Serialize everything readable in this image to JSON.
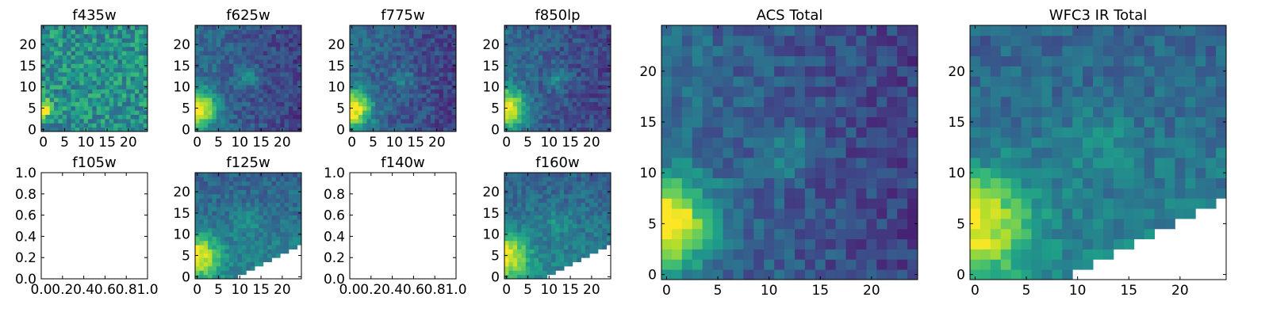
{
  "figure": {
    "colormap": "viridis",
    "background": "#ffffff"
  },
  "chart_data": [
    {
      "id": "p-f435w",
      "type": "heatmap",
      "title": "f435w",
      "xlim": [
        -0.5,
        24.5
      ],
      "ylim": [
        -0.5,
        24.5
      ],
      "xticks": [
        0,
        5,
        10,
        15,
        20
      ],
      "yticks": [
        0,
        5,
        10,
        15,
        20
      ],
      "grid": false,
      "pattern": "noisy",
      "bright_spot": [
        0,
        5
      ]
    },
    {
      "id": "p-f625w",
      "type": "heatmap",
      "title": "f625w",
      "xlim": [
        -0.5,
        24.5
      ],
      "ylim": [
        -0.5,
        24.5
      ],
      "xticks": [
        0,
        5,
        10,
        15,
        20
      ],
      "yticks": [
        0,
        5,
        10,
        15,
        20
      ],
      "grid": false,
      "pattern": "acs",
      "bright_spot": [
        0,
        5
      ]
    },
    {
      "id": "p-f775w",
      "type": "heatmap",
      "title": "f775w",
      "xlim": [
        -0.5,
        24.5
      ],
      "ylim": [
        -0.5,
        24.5
      ],
      "xticks": [
        0,
        5,
        10,
        15,
        20
      ],
      "yticks": [
        0,
        5,
        10,
        15,
        20
      ],
      "grid": false,
      "pattern": "acs",
      "bright_spot": [
        0,
        5
      ]
    },
    {
      "id": "p-f850lp",
      "type": "heatmap",
      "title": "f850lp",
      "xlim": [
        -0.5,
        24.5
      ],
      "ylim": [
        -0.5,
        24.5
      ],
      "xticks": [
        0,
        5,
        10,
        15,
        20
      ],
      "yticks": [
        0,
        5,
        10,
        15,
        20
      ],
      "grid": false,
      "pattern": "acs",
      "bright_spot": [
        0,
        5
      ]
    },
    {
      "id": "p-f105w",
      "type": "empty",
      "title": "f105w",
      "xlim": [
        0,
        1
      ],
      "ylim": [
        0,
        1
      ],
      "xticks": [
        0.0,
        0.2,
        0.4,
        0.6,
        0.8,
        1.0
      ],
      "yticks": [
        0.0,
        0.2,
        0.4,
        0.6,
        0.8,
        1.0
      ],
      "xticklabels": [
        "0.0",
        "0.2",
        "0.4",
        "0.6",
        "0.8",
        "1.0"
      ],
      "yticklabels": [
        "0.0",
        "0.2",
        "0.4",
        "0.6",
        "0.8",
        "1.0"
      ],
      "grid": false
    },
    {
      "id": "p-f125w",
      "type": "heatmap",
      "title": "f125w",
      "xlim": [
        -0.5,
        24.5
      ],
      "ylim": [
        -0.5,
        24.5
      ],
      "xticks": [
        0,
        5,
        10,
        15,
        20
      ],
      "yticks": [
        0,
        5,
        10,
        15,
        20
      ],
      "grid": false,
      "pattern": "ir",
      "bright_spot": [
        0,
        5
      ],
      "masked": "lower-right-triangle"
    },
    {
      "id": "p-f140w",
      "type": "empty",
      "title": "f140w",
      "xlim": [
        0,
        1
      ],
      "ylim": [
        0,
        1
      ],
      "xticks": [
        0.0,
        0.2,
        0.4,
        0.6,
        0.8,
        1.0
      ],
      "yticks": [
        0.0,
        0.2,
        0.4,
        0.6,
        0.8,
        1.0
      ],
      "xticklabels": [
        "0.0",
        "0.2",
        "0.4",
        "0.6",
        "0.8",
        "1.0"
      ],
      "yticklabels": [
        "0.0",
        "0.2",
        "0.4",
        "0.6",
        "0.8",
        "1.0"
      ],
      "grid": false
    },
    {
      "id": "p-f160w",
      "type": "heatmap",
      "title": "f160w",
      "xlim": [
        -0.5,
        24.5
      ],
      "ylim": [
        -0.5,
        24.5
      ],
      "xticks": [
        0,
        5,
        10,
        15,
        20
      ],
      "yticks": [
        0,
        5,
        10,
        15,
        20
      ],
      "grid": false,
      "pattern": "ir",
      "bright_spot": [
        0,
        5
      ],
      "masked": "lower-right-triangle"
    },
    {
      "id": "p-acs-total",
      "type": "heatmap",
      "title": "ACS Total",
      "xlim": [
        -0.5,
        24.5
      ],
      "ylim": [
        -0.5,
        24.5
      ],
      "xticks": [
        0,
        5,
        10,
        15,
        20
      ],
      "yticks": [
        0,
        5,
        10,
        15,
        20
      ],
      "grid": false,
      "pattern": "acs",
      "bright_spot": [
        0,
        5
      ]
    },
    {
      "id": "p-wfc3-ir-total",
      "type": "heatmap",
      "title": "WFC3 IR Total",
      "xlim": [
        -0.5,
        24.5
      ],
      "ylim": [
        -0.5,
        24.5
      ],
      "xticks": [
        0,
        5,
        10,
        15,
        20
      ],
      "yticks": [
        0,
        5,
        10,
        15,
        20
      ],
      "grid": false,
      "pattern": "ir",
      "bright_spot": [
        0,
        5
      ],
      "masked": "lower-right-triangle"
    }
  ]
}
